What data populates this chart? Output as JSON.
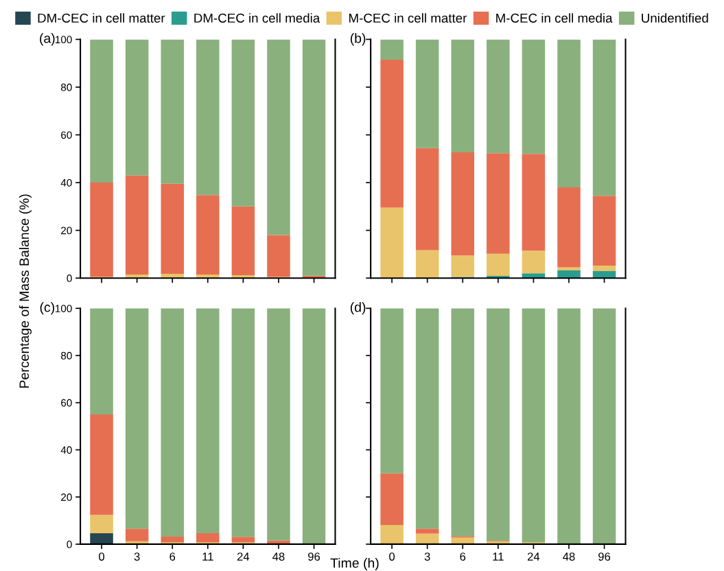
{
  "chart_data": [
    {
      "type": "bar",
      "stacked": true,
      "title": "(a)",
      "ylabel": "Percentage of Mass Balance (%)",
      "categories": [
        "0",
        "3",
        "6",
        "11",
        "24",
        "48",
        "96"
      ],
      "ylim": [
        0,
        100
      ],
      "yticks": [
        0,
        20,
        40,
        60,
        80,
        100
      ],
      "tick_labels": "y",
      "legend": "top",
      "series": [
        {
          "name": "DM-CEC in cell matter",
          "color": "#264653",
          "values": [
            0,
            0,
            0,
            0,
            0,
            0,
            0
          ]
        },
        {
          "name": "DM-CEC in cell media",
          "color": "#2a9d8f",
          "values": [
            0,
            0,
            0,
            0,
            0,
            0,
            0
          ]
        },
        {
          "name": "M-CEC in cell matter",
          "color": "#e9c46a",
          "values": [
            0.5,
            1.5,
            1.8,
            1.5,
            1.2,
            0.5,
            0
          ]
        },
        {
          "name": "M-CEC in cell media",
          "color": "#e76f51",
          "values": [
            39.5,
            41.5,
            37.7,
            33.3,
            28.8,
            17.5,
            1
          ]
        },
        {
          "name": "Unidentified",
          "color": "#8ab17d",
          "values": [
            60,
            57,
            60.5,
            65.2,
            70,
            82,
            99
          ]
        }
      ]
    },
    {
      "type": "bar",
      "stacked": true,
      "title": "(b)",
      "categories": [
        "0",
        "3",
        "6",
        "11",
        "24",
        "48",
        "96"
      ],
      "ylim": [
        0,
        100
      ],
      "yticks": [
        0,
        20,
        40,
        60,
        80,
        100
      ],
      "tick_labels": false,
      "series": [
        {
          "color": "#264653",
          "values": [
            0,
            0,
            0,
            0,
            0,
            0,
            0
          ]
        },
        {
          "color": "#2a9d8f",
          "values": [
            0,
            0,
            0.5,
            0.9,
            2.0,
            3.2,
            2.9
          ]
        },
        {
          "color": "#e9c46a",
          "values": [
            29.5,
            11.7,
            9,
            9.3,
            9.5,
            1.3,
            2.3
          ]
        },
        {
          "color": "#e76f51",
          "values": [
            62,
            42.8,
            43.2,
            42.1,
            40.5,
            33.5,
            29.3
          ]
        },
        {
          "color": "#8ab17d",
          "values": [
            8.5,
            45.5,
            47.3,
            47.7,
            48,
            62,
            65.5
          ]
        }
      ]
    },
    {
      "type": "bar",
      "stacked": true,
      "title": "(c)",
      "xlabel": "Time (h)",
      "categories": [
        "0",
        "3",
        "6",
        "11",
        "24",
        "48",
        "96"
      ],
      "ylim": [
        0,
        100
      ],
      "yticks": [
        0,
        20,
        40,
        60,
        80,
        100
      ],
      "series": [
        {
          "color": "#264653",
          "values": [
            4.6,
            0,
            0,
            0,
            0,
            0,
            0
          ]
        },
        {
          "color": "#2a9d8f",
          "values": [
            0,
            0,
            0,
            0,
            0,
            0,
            0
          ]
        },
        {
          "color": "#e9c46a",
          "values": [
            7.8,
            1.2,
            0.8,
            0.8,
            0.8,
            0,
            0
          ]
        },
        {
          "color": "#e76f51",
          "values": [
            42.6,
            5.4,
            2.4,
            3.8,
            2.3,
            1.5,
            0
          ]
        },
        {
          "color": "#8ab17d",
          "values": [
            45,
            93.4,
            96.8,
            95.4,
            96.9,
            98.5,
            100
          ]
        }
      ]
    },
    {
      "type": "bar",
      "stacked": true,
      "title": "(d)",
      "categories": [
        "0",
        "3",
        "6",
        "11",
        "24",
        "48",
        "96"
      ],
      "ylim": [
        0,
        100
      ],
      "yticks": [
        0,
        20,
        40,
        60,
        80,
        100
      ],
      "tick_labels": "x",
      "series": [
        {
          "color": "#264653",
          "values": [
            0,
            0,
            0,
            0,
            0,
            0,
            0
          ]
        },
        {
          "color": "#2a9d8f",
          "values": [
            0,
            0,
            0,
            0,
            0,
            0,
            0
          ]
        },
        {
          "color": "#e9c46a",
          "values": [
            8.1,
            4.5,
            2.8,
            1.2,
            0.8,
            0,
            0
          ]
        },
        {
          "color": "#e76f51",
          "values": [
            21.9,
            2.1,
            0.6,
            0.2,
            0,
            0,
            0
          ]
        },
        {
          "color": "#8ab17d",
          "values": [
            70,
            93.4,
            96.6,
            98.6,
            99.2,
            100,
            100
          ]
        }
      ]
    }
  ]
}
